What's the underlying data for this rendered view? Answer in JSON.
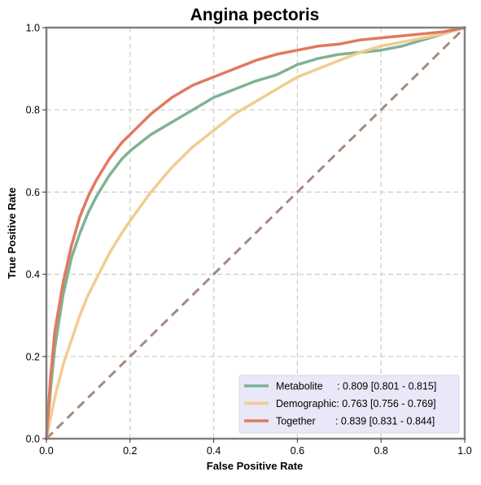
{
  "chart_data": {
    "type": "line",
    "title": "Angina pectoris",
    "xlabel": "False Positive Rate",
    "ylabel": "True Positive Rate",
    "xlim": [
      0.0,
      1.0
    ],
    "ylim": [
      0.0,
      1.0
    ],
    "xticks": [
      "0.0",
      "0.2",
      "0.4",
      "0.6",
      "0.8",
      "1.0"
    ],
    "yticks": [
      "0.0",
      "0.2",
      "0.4",
      "0.6",
      "0.8",
      "1.0"
    ],
    "grid": true,
    "legend_position": "lower-right",
    "series": [
      {
        "name": "Metabolite",
        "legend_label": "Metabolite     : 0.809 [0.801 - 0.815]",
        "color": "#7fb394",
        "x": [
          0.0,
          0.01,
          0.02,
          0.04,
          0.06,
          0.08,
          0.1,
          0.12,
          0.15,
          0.18,
          0.2,
          0.25,
          0.3,
          0.35,
          0.4,
          0.45,
          0.5,
          0.55,
          0.6,
          0.65,
          0.7,
          0.75,
          0.8,
          0.85,
          0.9,
          0.95,
          1.0
        ],
        "y": [
          0.0,
          0.12,
          0.22,
          0.35,
          0.44,
          0.5,
          0.55,
          0.59,
          0.64,
          0.68,
          0.7,
          0.74,
          0.77,
          0.8,
          0.83,
          0.85,
          0.87,
          0.885,
          0.91,
          0.925,
          0.935,
          0.94,
          0.945,
          0.955,
          0.97,
          0.985,
          1.0
        ]
      },
      {
        "name": "Demographic",
        "legend_label": "Demographic: 0.763 [0.756 - 0.769]",
        "color": "#f2cc8f",
        "x": [
          0.0,
          0.01,
          0.02,
          0.04,
          0.06,
          0.08,
          0.1,
          0.12,
          0.15,
          0.18,
          0.2,
          0.25,
          0.3,
          0.35,
          0.4,
          0.45,
          0.5,
          0.55,
          0.6,
          0.65,
          0.7,
          0.75,
          0.8,
          0.85,
          0.9,
          0.95,
          1.0
        ],
        "y": [
          0.0,
          0.05,
          0.1,
          0.18,
          0.24,
          0.3,
          0.35,
          0.39,
          0.45,
          0.5,
          0.53,
          0.6,
          0.66,
          0.71,
          0.75,
          0.79,
          0.82,
          0.85,
          0.88,
          0.9,
          0.92,
          0.94,
          0.955,
          0.965,
          0.975,
          0.985,
          1.0
        ]
      },
      {
        "name": "Together",
        "legend_label": "Together       : 0.839 [0.831 - 0.844]",
        "color": "#e07a5f",
        "x": [
          0.0,
          0.01,
          0.02,
          0.04,
          0.06,
          0.08,
          0.1,
          0.12,
          0.15,
          0.18,
          0.2,
          0.25,
          0.3,
          0.35,
          0.4,
          0.45,
          0.5,
          0.55,
          0.6,
          0.65,
          0.7,
          0.75,
          0.8,
          0.85,
          0.9,
          0.95,
          1.0
        ],
        "y": [
          0.0,
          0.15,
          0.26,
          0.38,
          0.47,
          0.54,
          0.59,
          0.63,
          0.68,
          0.72,
          0.74,
          0.79,
          0.83,
          0.86,
          0.88,
          0.9,
          0.92,
          0.935,
          0.945,
          0.955,
          0.96,
          0.97,
          0.975,
          0.98,
          0.985,
          0.99,
          1.0
        ]
      }
    ],
    "reference_line": {
      "x": [
        0.0,
        1.0
      ],
      "y": [
        0.0,
        1.0
      ],
      "color": "#a68a7b",
      "style": "dashed"
    }
  }
}
